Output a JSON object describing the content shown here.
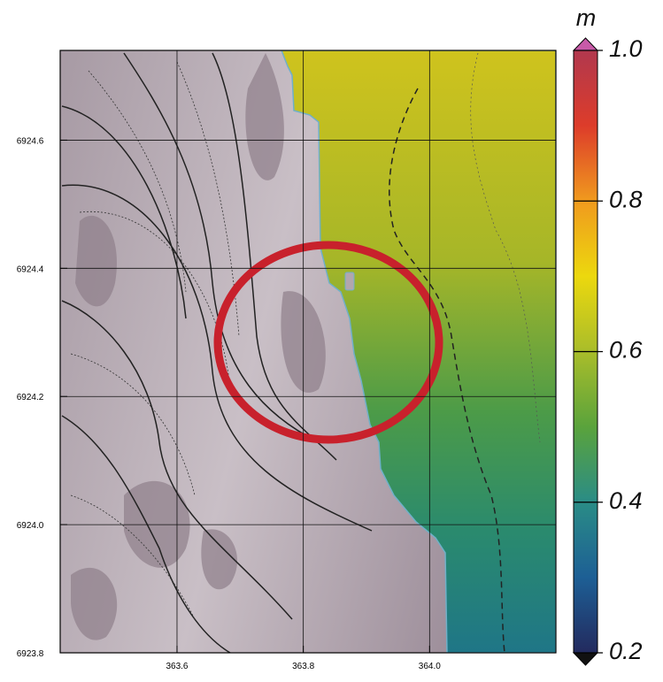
{
  "chart_data": {
    "type": "map",
    "xlim": [
      363.415,
      364.2
    ],
    "xticks": [
      363.6,
      363.8,
      {
        "value": 364,
        "label": "364.0"
      }
    ],
    "ylim": [
      6923.8,
      6924.74
    ],
    "yticks": [
      6923.8,
      {
        "value": 6924,
        "label": "6924.0"
      },
      6924.2,
      6924.4,
      6924.6
    ],
    "grid": true,
    "colorbar": {
      "label": "m",
      "lim": [
        0.2,
        1
      ],
      "ticks": [
        0.2,
        0.4,
        0.6,
        0.8,
        {
          "value": 1,
          "label": "1.0"
        }
      ],
      "colors": [
        "#232a5e",
        "#1d5f95",
        "#2a8c86",
        "#5aa33c",
        "#a9bd2a",
        "#ecd80e",
        "#f09a1e",
        "#dd3c2a",
        "#b1384e"
      ]
    }
  }
}
